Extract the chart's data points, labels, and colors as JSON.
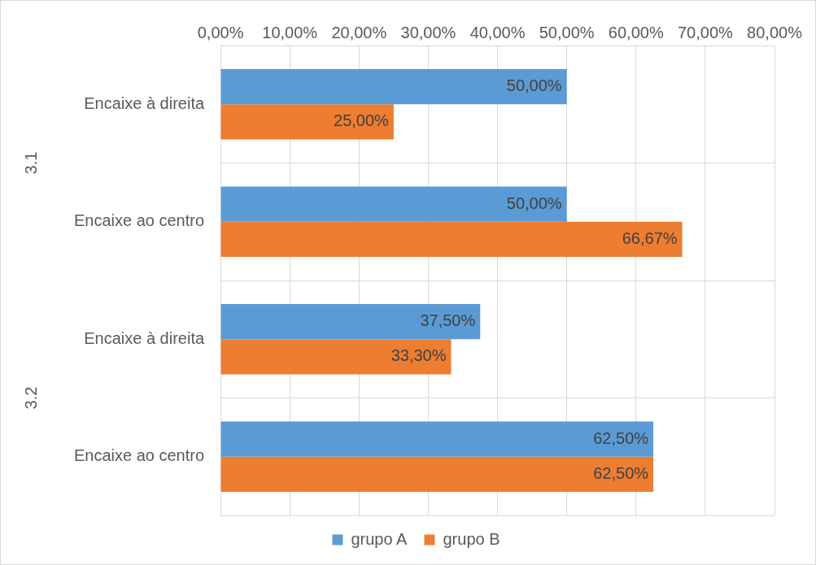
{
  "chart_data": {
    "type": "bar",
    "orientation": "horizontal",
    "categories": [
      "Encaixe à direita",
      "Encaixe ao centro",
      "Encaixe à direita",
      "Encaixe ao centro"
    ],
    "series": [
      {
        "name": "grupo A",
        "color": "#5b9bd5",
        "values": [
          50,
          50,
          37.5,
          62.5
        ],
        "value_labels": [
          "50,00%",
          "50,00%",
          "37,50%",
          "62,50%"
        ]
      },
      {
        "name": "grupo B",
        "color": "#ed7d31",
        "values": [
          25,
          66.67,
          33.3,
          62.5
        ],
        "value_labels": [
          "25,00%",
          "66,67%",
          "33,30%",
          "62,50%"
        ]
      }
    ],
    "xlim": [
      0,
      80
    ],
    "xticks": [
      {
        "value": 0,
        "label": "0,00%"
      },
      {
        "value": 10,
        "label": "10,00%"
      },
      {
        "value": 20,
        "label": "20,00%"
      },
      {
        "value": 30,
        "label": "30,00%"
      },
      {
        "value": 40,
        "label": "40,00%"
      },
      {
        "value": 50,
        "label": "50,00%"
      },
      {
        "value": 60,
        "label": "60,00%"
      },
      {
        "value": 70,
        "label": "70,00%"
      },
      {
        "value": 80,
        "label": "80,00%"
      }
    ],
    "annotations": [
      "3.1",
      "3.2"
    ],
    "grid": true,
    "legend": "bottom"
  }
}
